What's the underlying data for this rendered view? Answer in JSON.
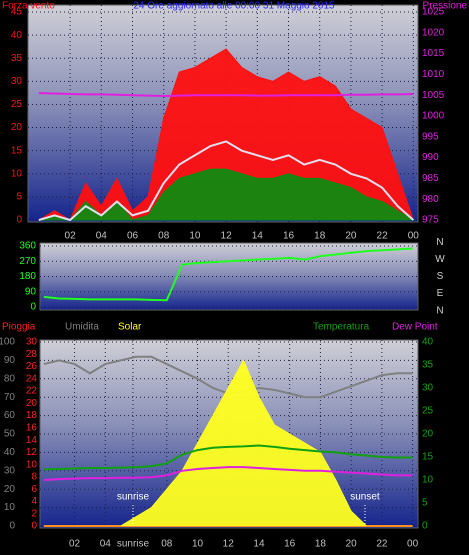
{
  "chart_data": [
    {
      "type": "line",
      "title": "24 Ore aggiornato alle 00:00 31 Maggio 2015",
      "x": [
        0,
        1,
        2,
        3,
        4,
        5,
        6,
        7,
        8,
        9,
        10,
        11,
        12,
        13,
        14,
        15,
        16,
        17,
        18,
        19,
        20,
        21,
        22,
        23,
        24
      ],
      "xlim": [
        -0.7,
        24.3
      ],
      "xticks": [
        {
          "value": 2,
          "label": "02"
        },
        {
          "value": 4,
          "label": "04"
        },
        {
          "value": 6,
          "label": "06"
        },
        {
          "value": 8,
          "label": "08"
        },
        10,
        12,
        14,
        16,
        18,
        20,
        22,
        {
          "value": 24,
          "label": "00"
        }
      ],
      "ylim": [
        0,
        45
      ],
      "yticks": [
        0,
        5,
        10,
        15,
        20,
        25,
        30,
        35,
        40,
        45
      ],
      "y2lim": [
        975,
        1025
      ],
      "y2ticks": [
        975,
        980,
        985,
        990,
        995,
        1000,
        1005,
        1010,
        1015,
        1020,
        1025
      ],
      "grid": true,
      "series": [
        {
          "name": "Forza vento",
          "color": "#ff1010",
          "style": "area",
          "values": [
            0,
            2,
            0,
            8,
            3,
            9,
            2,
            5,
            22,
            32,
            33,
            35,
            37,
            33,
            31,
            30,
            32,
            30,
            31,
            29,
            24,
            22,
            20,
            10,
            0
          ]
        },
        {
          "color": "#108a10",
          "style": "area",
          "values": [
            0,
            1,
            0,
            4,
            1,
            4,
            0,
            1,
            6,
            9,
            10,
            11,
            11,
            10,
            9,
            9,
            10,
            9,
            9,
            8,
            7,
            5,
            4,
            2,
            0
          ]
        },
        {
          "color": "#e0e0f0",
          "style": "line",
          "values": [
            0,
            1,
            0,
            3,
            1,
            4,
            1,
            2,
            8,
            12,
            14,
            16,
            17,
            15,
            14,
            13,
            14,
            12,
            13,
            12,
            10,
            9,
            7,
            3,
            0
          ]
        },
        {
          "name": "Pressione",
          "color": "#e020e0",
          "style": "line",
          "axis": "y2",
          "values": [
            1005.5,
            1005.4,
            1005.3,
            1005.2,
            1005.2,
            1005.1,
            1005,
            1004.9,
            1004.8,
            1004.9,
            1005,
            1005,
            1005,
            1005,
            1004.9,
            1004.9,
            1005,
            1005,
            1005,
            1005,
            1005.1,
            1005.1,
            1005.2,
            1005.2,
            1005.3
          ]
        }
      ]
    },
    {
      "type": "line",
      "x": [
        0,
        1,
        2,
        3,
        4,
        5,
        6,
        7,
        8,
        9,
        10,
        11,
        12,
        13,
        14,
        15,
        16,
        17,
        18,
        19,
        20,
        21,
        22,
        23,
        24
      ],
      "xlim": [
        -0.25,
        24.35
      ],
      "ylim": [
        0,
        360
      ],
      "yticks": [
        0,
        90,
        180,
        270,
        360
      ],
      "y2lim": [
        0,
        360
      ],
      "y2ticks": [
        {
          "value": 360,
          "label": "N"
        },
        {
          "value": 270,
          "label": "W"
        },
        {
          "value": 180,
          "label": "S"
        },
        {
          "value": 90,
          "label": "E"
        },
        {
          "value": 0,
          "label": "N"
        }
      ],
      "grid": true,
      "series": [
        {
          "color": "#20ff20",
          "style": "line",
          "values": [
            60,
            50,
            48,
            45,
            45,
            45,
            45,
            42,
            40,
            250,
            260,
            265,
            270,
            275,
            280,
            285,
            290,
            280,
            300,
            310,
            320,
            330,
            335,
            340,
            345
          ]
        }
      ]
    },
    {
      "type": "line",
      "x": [
        0,
        1,
        2,
        3,
        4,
        5,
        6,
        7,
        8,
        9,
        10,
        11,
        12,
        13,
        14,
        15,
        16,
        17,
        18,
        19,
        20,
        21,
        22,
        23,
        24
      ],
      "xlim": [
        -0.25,
        24.35
      ],
      "xticks": [
        {
          "value": 2,
          "label": "02"
        },
        {
          "value": 4,
          "label": "04"
        },
        {
          "value": 5.8,
          "label": "sunrise"
        },
        {
          "value": 8,
          "label": "08"
        },
        10,
        12,
        14,
        16,
        18,
        20,
        22,
        {
          "value": 24,
          "label": "00"
        }
      ],
      "ylim": [
        0,
        100
      ],
      "yticks": [
        0,
        10,
        20,
        30,
        40,
        50,
        60,
        70,
        80,
        90,
        100
      ],
      "y2lim": [
        0,
        40
      ],
      "y2ticks": [
        0,
        5,
        10,
        15,
        20,
        25,
        30,
        35,
        40
      ],
      "y3lim": [
        0,
        30
      ],
      "y3ticks": [
        0,
        2,
        4,
        6,
        8,
        10,
        12,
        14,
        16,
        18,
        20,
        22,
        24,
        26,
        28,
        30
      ],
      "grid": true,
      "annotations": [
        {
          "text": "sunrise",
          "x": 5.8
        },
        {
          "text": "sunset",
          "x": 20.9
        }
      ],
      "series": [
        {
          "name": "Pioggia",
          "color": "#ff2020",
          "style": "line",
          "axis": "y3",
          "values": [
            0,
            0,
            0,
            0,
            0,
            0,
            0,
            0,
            0,
            0,
            0,
            0,
            0,
            0,
            0,
            0,
            0,
            0,
            0,
            0,
            0,
            0,
            0,
            0,
            0
          ]
        },
        {
          "name": "Umidita",
          "color": "#808080",
          "style": "line",
          "values": [
            88,
            90,
            88,
            83,
            88,
            90,
            92,
            92,
            88,
            84,
            80,
            75,
            72,
            73,
            75,
            74,
            72,
            70,
            70,
            73,
            76,
            79,
            82,
            83,
            83
          ]
        },
        {
          "name": "Solar",
          "color": "#ffff20",
          "style": "area",
          "values": [
            0,
            0,
            0,
            0,
            0,
            0,
            5,
            10,
            20,
            30,
            45,
            60,
            75,
            90,
            70,
            55,
            50,
            45,
            40,
            25,
            8,
            0,
            0,
            0,
            0
          ]
        },
        {
          "name": "Temperatura",
          "color": "#10a010",
          "style": "line",
          "axis": "y2",
          "values": [
            12.3,
            12.4,
            12.5,
            12.6,
            12.6,
            12.7,
            12.8,
            13,
            13.6,
            15.5,
            16.5,
            17,
            17.2,
            17.3,
            17.5,
            17.2,
            16.8,
            16.5,
            16.2,
            16,
            15.6,
            15.3,
            15,
            14.9,
            14.9
          ]
        },
        {
          "name": "Dew Point",
          "color": "#e020e0",
          "style": "line",
          "axis": "y2",
          "values": [
            10,
            10.2,
            10.3,
            10.4,
            10.4,
            10.5,
            10.5,
            10.6,
            11,
            12,
            12.4,
            12.6,
            12.8,
            12.8,
            12.6,
            12.4,
            12.2,
            12,
            12,
            11.8,
            11.6,
            11.4,
            11.2,
            11,
            11
          ]
        }
      ]
    }
  ]
}
